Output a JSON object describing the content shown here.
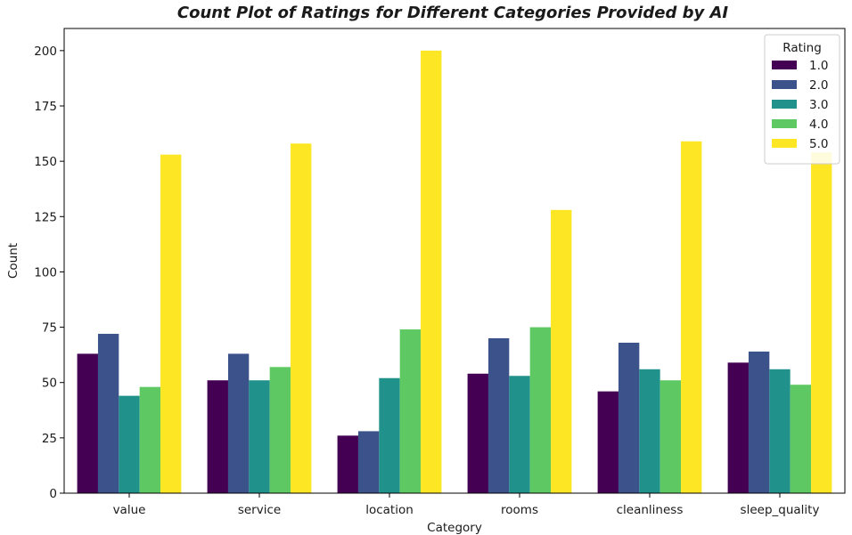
{
  "chart_data": {
    "type": "bar",
    "title": "Count Plot of Ratings for Different Categories Provided by AI",
    "xlabel": "Category",
    "ylabel": "Count",
    "ylim": [
      0,
      210
    ],
    "yticks": [
      0,
      25,
      50,
      75,
      100,
      125,
      150,
      175,
      200
    ],
    "categories": [
      "value",
      "service",
      "location",
      "rooms",
      "cleanliness",
      "sleep_quality"
    ],
    "series": [
      {
        "name": "1.0",
        "color": "#440154",
        "values": [
          63,
          51,
          26,
          54,
          46,
          59
        ]
      },
      {
        "name": "2.0",
        "color": "#3b528b",
        "values": [
          72,
          63,
          28,
          70,
          68,
          64
        ]
      },
      {
        "name": "3.0",
        "color": "#21918c",
        "values": [
          44,
          51,
          52,
          53,
          56,
          56
        ]
      },
      {
        "name": "4.0",
        "color": "#5ec962",
        "values": [
          48,
          57,
          74,
          75,
          51,
          49
        ]
      },
      {
        "name": "5.0",
        "color": "#fde725",
        "values": [
          153,
          158,
          200,
          128,
          159,
          154
        ]
      }
    ],
    "legend": {
      "title": "Rating",
      "position": "top-right"
    },
    "grid": false
  }
}
